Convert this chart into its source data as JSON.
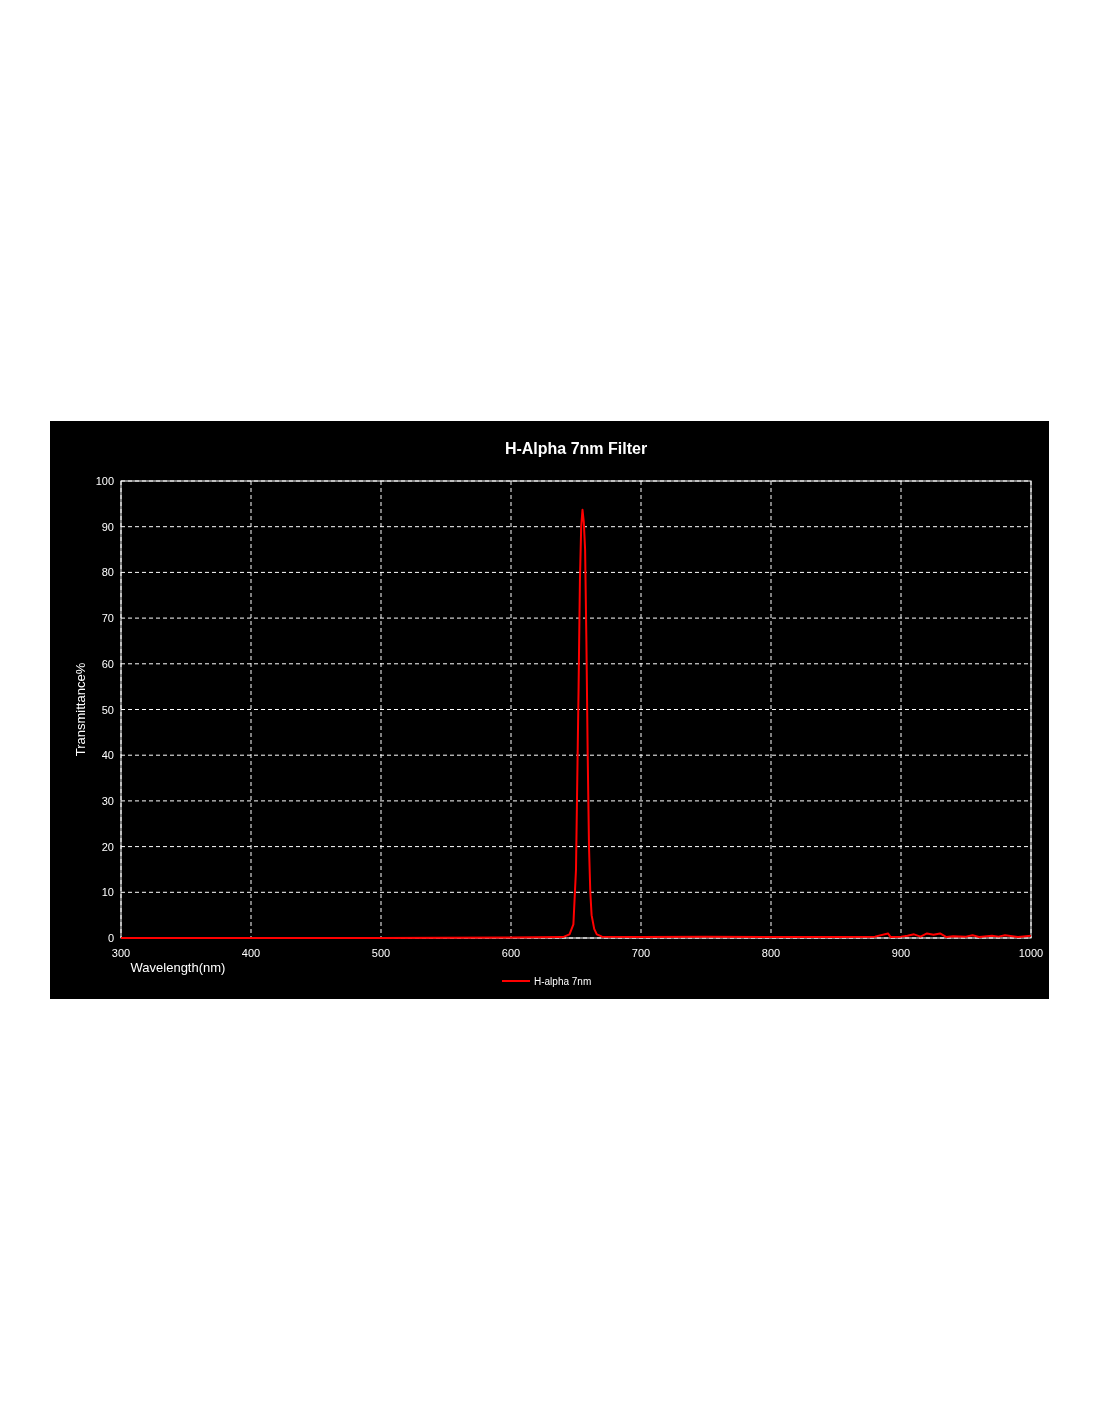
{
  "chart_data": {
    "type": "line",
    "title": "H-Alpha 7nm Filter",
    "xlabel": "Wavelength(nm)",
    "ylabel": "Transmittance%",
    "x": [
      300,
      400,
      500,
      600,
      640,
      645,
      648,
      650,
      651,
      652,
      653,
      654,
      655,
      656,
      657,
      658,
      659,
      660,
      661,
      662,
      664,
      666,
      670,
      700,
      750,
      800,
      850,
      880,
      890,
      892,
      900,
      905,
      910,
      915,
      920,
      925,
      930,
      935,
      940,
      950,
      955,
      960,
      970,
      975,
      980,
      990,
      1000
    ],
    "series": [
      {
        "name": "H-alpha 7nm",
        "color": "#ff0000",
        "values": [
          0,
          0,
          0,
          0.1,
          0.2,
          0.8,
          3,
          15,
          35,
          55,
          78,
          90,
          93.7,
          91,
          85,
          65,
          40,
          20,
          10,
          5,
          2,
          0.8,
          0.3,
          0.2,
          0.3,
          0.2,
          0.2,
          0.3,
          1,
          0.2,
          0.3,
          0.5,
          0.8,
          0.3,
          1,
          0.7,
          1,
          0.2,
          0.4,
          0.3,
          0.6,
          0.2,
          0.5,
          0.3,
          0.6,
          0.2,
          0.5
        ]
      }
    ],
    "xlim": [
      300,
      1000
    ],
    "ylim": [
      0,
      100
    ],
    "xticks": [
      300,
      400,
      500,
      600,
      700,
      800,
      900,
      1000
    ],
    "yticks": [
      0,
      10,
      20,
      30,
      40,
      50,
      60,
      70,
      80,
      90,
      100
    ],
    "grid": true,
    "legend": "bottom",
    "line_style": "solid",
    "marker": "none"
  }
}
